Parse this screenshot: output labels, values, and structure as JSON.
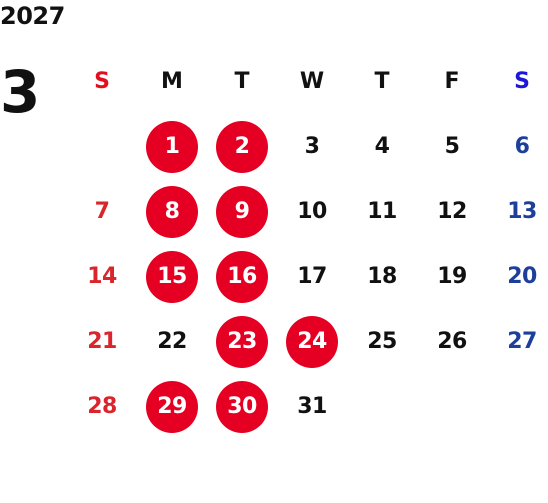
{
  "year": "2027",
  "month": "3",
  "weekdays": [
    "S",
    "M",
    "T",
    "W",
    "T",
    "F",
    "S"
  ],
  "leading_blank_days": 1,
  "days": [
    {
      "label": "1",
      "highlighted": true
    },
    {
      "label": "2",
      "highlighted": true
    },
    {
      "label": "3",
      "highlighted": false
    },
    {
      "label": "4",
      "highlighted": false
    },
    {
      "label": "5",
      "highlighted": false
    },
    {
      "label": "6",
      "highlighted": false
    },
    {
      "label": "7",
      "highlighted": false
    },
    {
      "label": "8",
      "highlighted": true
    },
    {
      "label": "9",
      "highlighted": true
    },
    {
      "label": "10",
      "highlighted": false
    },
    {
      "label": "11",
      "highlighted": false
    },
    {
      "label": "12",
      "highlighted": false
    },
    {
      "label": "13",
      "highlighted": false
    },
    {
      "label": "14",
      "highlighted": false
    },
    {
      "label": "15",
      "highlighted": true
    },
    {
      "label": "16",
      "highlighted": true
    },
    {
      "label": "17",
      "highlighted": false
    },
    {
      "label": "18",
      "highlighted": false
    },
    {
      "label": "19",
      "highlighted": false
    },
    {
      "label": "20",
      "highlighted": false
    },
    {
      "label": "21",
      "highlighted": false
    },
    {
      "label": "22",
      "highlighted": false
    },
    {
      "label": "23",
      "highlighted": true
    },
    {
      "label": "24",
      "highlighted": true
    },
    {
      "label": "25",
      "highlighted": false
    },
    {
      "label": "26",
      "highlighted": false
    },
    {
      "label": "27",
      "highlighted": false
    },
    {
      "label": "28",
      "highlighted": false
    },
    {
      "label": "29",
      "highlighted": true
    },
    {
      "label": "30",
      "highlighted": true
    },
    {
      "label": "31",
      "highlighted": false
    }
  ],
  "colors": {
    "sunday": "#d9252b",
    "saturday": "#1d3f9b",
    "highlight": "#e50023"
  }
}
